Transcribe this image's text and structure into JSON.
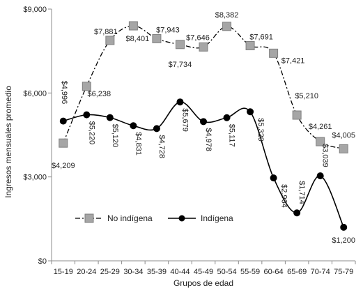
{
  "chart_data": {
    "type": "line",
    "xlabel": "Grupos de edad",
    "ylabel": "Ingresos mensuales promedio",
    "ylim": [
      0,
      9000
    ],
    "yticks": [
      0,
      3000,
      6000,
      9000
    ],
    "ytick_labels": [
      "$0",
      "$3,000",
      "$6,000",
      "$9,000"
    ],
    "grid": false,
    "legend_position": "bottom-left",
    "categories": [
      "15-19",
      "20-24",
      "25-29",
      "30-34",
      "35-39",
      "40-44",
      "45-49",
      "50-54",
      "55-59",
      "60-64",
      "65-69",
      "70-74",
      "75-79"
    ],
    "series": [
      {
        "name": "No indígena",
        "style": "dash-dot, square markers",
        "line_color": "#000000",
        "marker_color": "#a6a6a6",
        "values": [
          4209,
          6238,
          7881,
          8401,
          7943,
          7734,
          7646,
          8382,
          7691,
          7421,
          5210,
          4261,
          4005
        ],
        "labels": [
          "$4,209",
          "$6,238",
          "$7,881",
          "$8,401",
          "$7,943",
          "$7,734",
          "$7,646",
          "$8,382",
          "$7,691",
          "$7,421",
          "$5,210",
          "$4,261",
          "$4,005"
        ]
      },
      {
        "name": "Indígena",
        "style": "solid smooth, circle markers",
        "line_color": "#000000",
        "marker_color": "#000000",
        "values": [
          4996,
          5220,
          5120,
          4831,
          4728,
          5679,
          4978,
          5117,
          5329,
          2964,
          1714,
          3039,
          1200
        ],
        "labels": [
          "$4,996",
          "$5,220",
          "$5,120",
          "$4,831",
          "$4,728",
          "$5,679",
          "$4,978",
          "$5,117",
          "$5,329",
          "$2,964",
          "$1,714",
          "$3,039",
          "$1,200"
        ]
      }
    ]
  }
}
